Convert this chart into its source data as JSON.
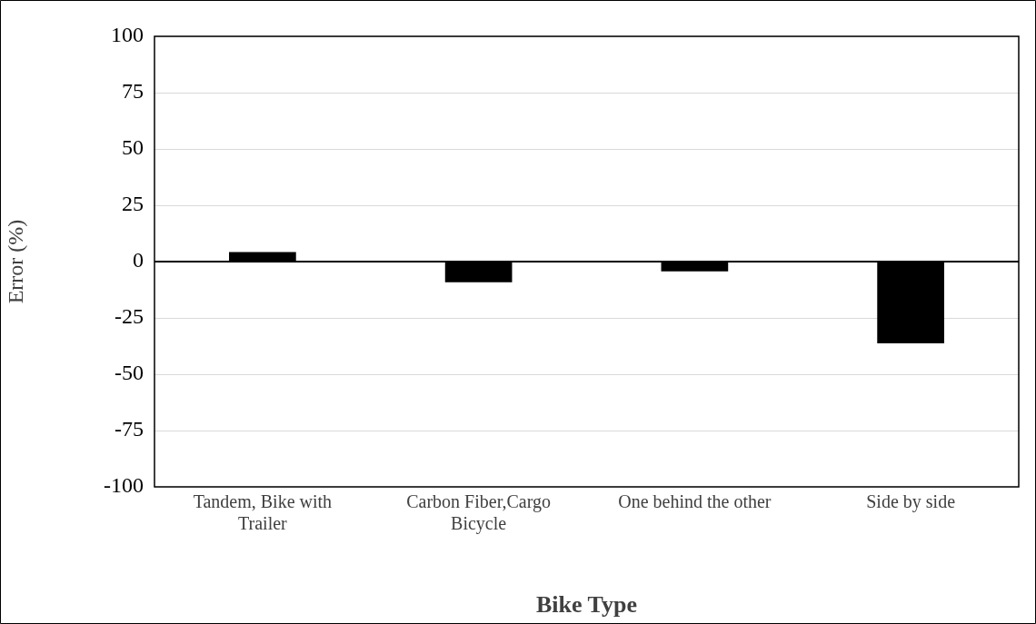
{
  "chart_data": {
    "type": "bar",
    "xlabel": "Bike Type",
    "ylabel": "Error (%)",
    "categories": [
      "Tandem, Bike with Trailer",
      "Carbon Fiber,Cargo Bicycle",
      "One behind the other",
      "Side by side"
    ],
    "values": [
      4.2,
      -9.2,
      -4.3,
      -36.3
    ],
    "color": "#000000",
    "ylim": [
      -100,
      100
    ],
    "yticks": [
      -100,
      -75,
      -50,
      -25,
      0,
      25,
      50,
      75,
      100
    ],
    "grid": "y",
    "legend": false
  }
}
